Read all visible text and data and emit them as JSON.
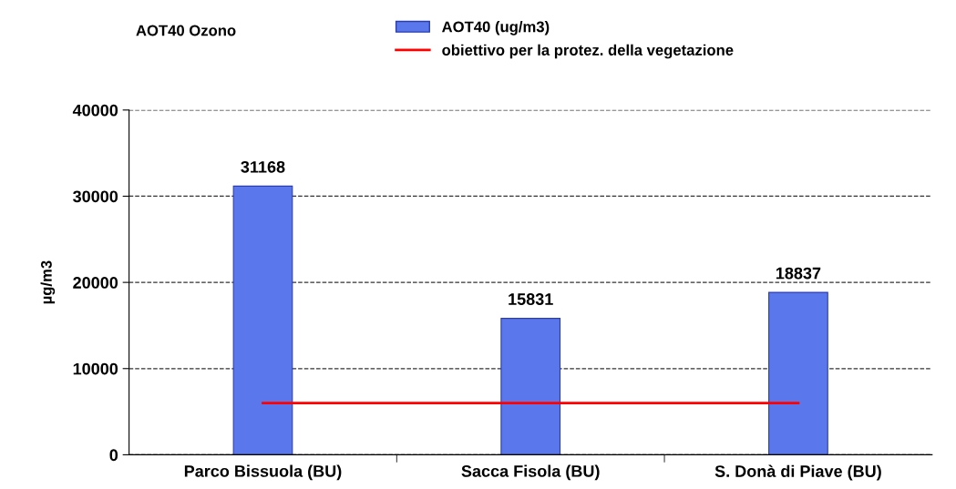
{
  "chart_data": {
    "type": "bar",
    "title": "AOT40 Ozono",
    "ylabel": "µg/m3",
    "categories": [
      "Parco Bissuola (BU)",
      "Sacca Fisola (BU)",
      "S. Donà di Piave (BU)"
    ],
    "series": [
      {
        "name": "AOT40 (ug/m3)",
        "color": "#5a78ec",
        "values": [
          31168,
          15831,
          18837
        ],
        "value_labels": [
          "31168",
          "15831",
          "18837"
        ]
      },
      {
        "name": "obiettivo per la protez. della vegetazione",
        "type": "line",
        "color": "#ff0000",
        "values": [
          6000,
          6000,
          6000
        ],
        "marker": "none",
        "line_style": "solid"
      }
    ],
    "ylim": [
      0,
      40000
    ],
    "yticks": [
      0,
      10000,
      20000,
      30000,
      40000
    ],
    "grid": "y",
    "legend": "top right"
  }
}
